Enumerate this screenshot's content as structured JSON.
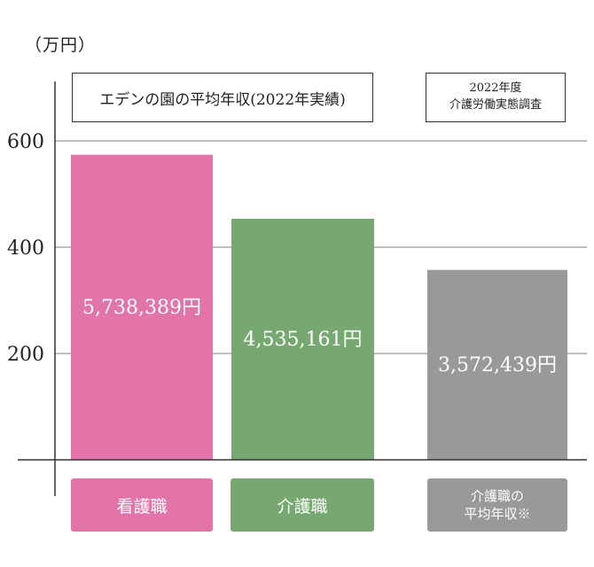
{
  "unit_label": "（万円）",
  "chart_data": {
    "type": "bar",
    "title": "エデンの園の平均年収(2022年実績)",
    "source_line1": "2022年度",
    "source_line2": "介護労働実態調査",
    "categories": [
      "看護職",
      "介護職",
      "介護職の平均年収※"
    ],
    "category_lines": [
      [
        "看護職"
      ],
      [
        "介護職"
      ],
      [
        "介護職の",
        "平均年収※"
      ]
    ],
    "values": [
      573.8389,
      453.5161,
      357.2439
    ],
    "value_labels": [
      "5,738,389円",
      "4,535,161円",
      "3,572,439円"
    ],
    "colors": [
      "#E274AA",
      "#78A872",
      "#999999"
    ],
    "ylim": [
      0,
      700
    ],
    "yticks": [
      200,
      400,
      600
    ],
    "grid": true
  }
}
